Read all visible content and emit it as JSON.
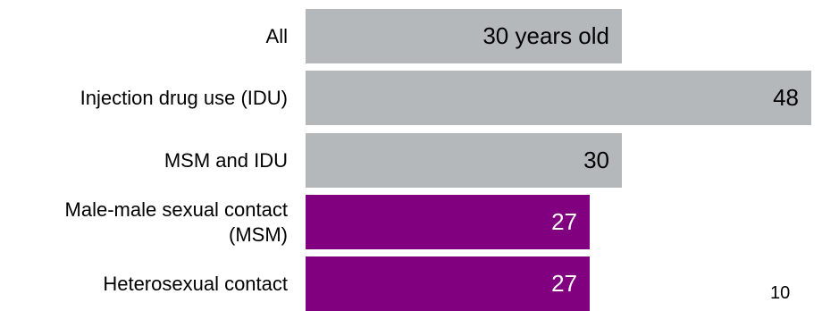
{
  "chart_data": {
    "type": "bar",
    "orientation": "horizontal",
    "categories": [
      "All",
      "Injection drug use (IDU)",
      "MSM and IDU",
      "Male-male sexual contact (MSM)",
      "Heterosexual contact"
    ],
    "category_lines": [
      [
        "All"
      ],
      [
        "Injection drug use (IDU)"
      ],
      [
        "MSM and IDU"
      ],
      [
        "Male-male sexual contact",
        "(MSM)"
      ],
      [
        "Heterosexual contact"
      ]
    ],
    "values": [
      30,
      48,
      30,
      27,
      27
    ],
    "data_labels": [
      "30 years old",
      "48",
      "30",
      "27",
      "27"
    ],
    "bar_colors": [
      "#b5b8bb",
      "#b5b8bb",
      "#b5b8bb",
      "#800080",
      "#800080"
    ],
    "label_colors": [
      "#000000",
      "#000000",
      "#000000",
      "#ffffff",
      "#ffffff"
    ],
    "xlim": [
      0,
      48
    ],
    "grid": false,
    "legend": "none"
  },
  "page_number": "10"
}
